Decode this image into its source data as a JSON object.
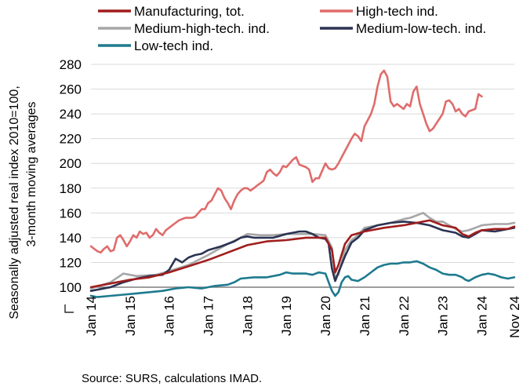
{
  "chart_data": {
    "type": "line",
    "ylabel_lines": [
      "Seasonally adjusted real  index 2010=100,",
      "3-month moving averages"
    ],
    "source": "Source: SURS, calculations IMAD.",
    "ylim": [
      90,
      280
    ],
    "yticks": [
      100,
      120,
      140,
      160,
      180,
      200,
      220,
      240,
      260,
      280
    ],
    "ytick_labels": [
      "100",
      "120",
      "140",
      "160",
      "180",
      "200",
      "220",
      "240",
      "260",
      "280"
    ],
    "y_break_marker": true,
    "baseline_value": 100,
    "grid": "horizontal",
    "legend_position": "top",
    "x_start": "Jan 14",
    "x_end": "Nov 24",
    "xtick_labels": [
      {
        "label": "Jan 14",
        "month_index": 0
      },
      {
        "label": "Jan 15",
        "month_index": 12
      },
      {
        "label": "Jan 16",
        "month_index": 24
      },
      {
        "label": "Jan 17",
        "month_index": 36
      },
      {
        "label": "Jan 18",
        "month_index": 48
      },
      {
        "label": "Jan 19",
        "month_index": 60
      },
      {
        "label": "Jan 20",
        "month_index": 72
      },
      {
        "label": "Jan 21",
        "month_index": 84
      },
      {
        "label": "Jan 22",
        "month_index": 96
      },
      {
        "label": "Jan 23",
        "month_index": 108
      },
      {
        "label": "Jan 24",
        "month_index": 120
      },
      {
        "label": "Nov 24",
        "month_index": 130
      }
    ],
    "series": [
      {
        "name": "Manufacturing, tot.",
        "color": "#a01d1d",
        "points": [
          [
            0,
            100
          ],
          [
            6,
            103
          ],
          [
            12,
            106
          ],
          [
            18,
            108
          ],
          [
            24,
            112
          ],
          [
            30,
            117
          ],
          [
            36,
            122
          ],
          [
            42,
            128
          ],
          [
            48,
            134
          ],
          [
            54,
            137
          ],
          [
            60,
            138
          ],
          [
            66,
            140
          ],
          [
            72,
            140
          ],
          [
            74,
            130
          ],
          [
            75,
            112
          ],
          [
            76,
            118
          ],
          [
            78,
            135
          ],
          [
            80,
            142
          ],
          [
            84,
            145
          ],
          [
            90,
            148
          ],
          [
            96,
            150
          ],
          [
            100,
            152
          ],
          [
            102,
            153
          ],
          [
            104,
            154
          ],
          [
            108,
            150
          ],
          [
            112,
            148
          ],
          [
            114,
            143
          ],
          [
            116,
            141
          ],
          [
            118,
            144
          ],
          [
            120,
            146
          ],
          [
            124,
            147
          ],
          [
            128,
            147
          ],
          [
            130,
            149
          ]
        ]
      },
      {
        "name": "High-tech ind.",
        "color": "#e06b6b",
        "points": [
          [
            0,
            133
          ],
          [
            1,
            131
          ],
          [
            2,
            129
          ],
          [
            3,
            128
          ],
          [
            4,
            131
          ],
          [
            5,
            133
          ],
          [
            6,
            129
          ],
          [
            7,
            130
          ],
          [
            8,
            140
          ],
          [
            9,
            142
          ],
          [
            10,
            138
          ],
          [
            11,
            133
          ],
          [
            12,
            137
          ],
          [
            13,
            142
          ],
          [
            14,
            140
          ],
          [
            15,
            145
          ],
          [
            16,
            143
          ],
          [
            17,
            144
          ],
          [
            18,
            140
          ],
          [
            19,
            142
          ],
          [
            20,
            147
          ],
          [
            21,
            144
          ],
          [
            22,
            142
          ],
          [
            23,
            146
          ],
          [
            24,
            148
          ],
          [
            25,
            150
          ],
          [
            26,
            152
          ],
          [
            27,
            154
          ],
          [
            28,
            155
          ],
          [
            29,
            156
          ],
          [
            30,
            156
          ],
          [
            31,
            156
          ],
          [
            32,
            157
          ],
          [
            33,
            160
          ],
          [
            34,
            163
          ],
          [
            35,
            163
          ],
          [
            36,
            168
          ],
          [
            37,
            170
          ],
          [
            38,
            175
          ],
          [
            39,
            180
          ],
          [
            40,
            178
          ],
          [
            41,
            172
          ],
          [
            42,
            168
          ],
          [
            43,
            163
          ],
          [
            44,
            170
          ],
          [
            45,
            175
          ],
          [
            46,
            178
          ],
          [
            47,
            180
          ],
          [
            48,
            180
          ],
          [
            49,
            178
          ],
          [
            50,
            180
          ],
          [
            51,
            182
          ],
          [
            52,
            184
          ],
          [
            53,
            186
          ],
          [
            54,
            193
          ],
          [
            55,
            195
          ],
          [
            56,
            192
          ],
          [
            57,
            190
          ],
          [
            58,
            193
          ],
          [
            59,
            198
          ],
          [
            60,
            197
          ],
          [
            61,
            200
          ],
          [
            62,
            203
          ],
          [
            63,
            205
          ],
          [
            64,
            199
          ],
          [
            65,
            198
          ],
          [
            66,
            197
          ],
          [
            67,
            195
          ],
          [
            68,
            185
          ],
          [
            69,
            188
          ],
          [
            70,
            188
          ],
          [
            71,
            194
          ],
          [
            72,
            200
          ],
          [
            73,
            196
          ],
          [
            74,
            195
          ],
          [
            75,
            196
          ],
          [
            76,
            200
          ],
          [
            77,
            205
          ],
          [
            78,
            210
          ],
          [
            79,
            215
          ],
          [
            80,
            220
          ],
          [
            81,
            224
          ],
          [
            82,
            222
          ],
          [
            83,
            218
          ],
          [
            84,
            230
          ],
          [
            85,
            235
          ],
          [
            86,
            240
          ],
          [
            87,
            248
          ],
          [
            88,
            262
          ],
          [
            89,
            272
          ],
          [
            90,
            275
          ],
          [
            91,
            270
          ],
          [
            92,
            250
          ],
          [
            93,
            246
          ],
          [
            94,
            248
          ],
          [
            95,
            246
          ],
          [
            96,
            244
          ],
          [
            97,
            248
          ],
          [
            98,
            246
          ],
          [
            99,
            258
          ],
          [
            100,
            262
          ],
          [
            101,
            248
          ],
          [
            102,
            240
          ],
          [
            103,
            232
          ],
          [
            104,
            226
          ],
          [
            105,
            228
          ],
          [
            106,
            232
          ],
          [
            107,
            236
          ],
          [
            108,
            240
          ],
          [
            109,
            250
          ],
          [
            110,
            251
          ],
          [
            111,
            248
          ],
          [
            112,
            242
          ],
          [
            113,
            244
          ],
          [
            114,
            240
          ],
          [
            115,
            238
          ],
          [
            116,
            242
          ],
          [
            117,
            243
          ],
          [
            118,
            244
          ],
          [
            119,
            256
          ],
          [
            120,
            254
          ]
        ]
      },
      {
        "name": "Medium-high-tech. ind.",
        "color": "#a6a6a6",
        "points": [
          [
            0,
            99
          ],
          [
            6,
            104
          ],
          [
            10,
            111
          ],
          [
            14,
            109
          ],
          [
            20,
            110
          ],
          [
            24,
            113
          ],
          [
            30,
            118
          ],
          [
            36,
            126
          ],
          [
            42,
            135
          ],
          [
            46,
            140
          ],
          [
            48,
            143
          ],
          [
            52,
            142
          ],
          [
            56,
            142
          ],
          [
            60,
            143
          ],
          [
            64,
            143
          ],
          [
            68,
            143
          ],
          [
            72,
            142
          ],
          [
            74,
            132
          ],
          [
            75,
            108
          ],
          [
            76,
            110
          ],
          [
            78,
            130
          ],
          [
            80,
            138
          ],
          [
            82,
            142
          ],
          [
            84,
            148
          ],
          [
            88,
            150
          ],
          [
            92,
            152
          ],
          [
            96,
            155
          ],
          [
            98,
            156
          ],
          [
            100,
            158
          ],
          [
            102,
            160
          ],
          [
            104,
            156
          ],
          [
            106,
            153
          ],
          [
            108,
            153
          ],
          [
            110,
            150
          ],
          [
            112,
            147
          ],
          [
            114,
            145
          ],
          [
            116,
            146
          ],
          [
            118,
            148
          ],
          [
            120,
            150
          ],
          [
            124,
            151
          ],
          [
            128,
            151
          ],
          [
            130,
            152
          ]
        ]
      },
      {
        "name": "Medium-low-tech. ind.",
        "color": "#2b3352",
        "points": [
          [
            0,
            97
          ],
          [
            6,
            100
          ],
          [
            10,
            104
          ],
          [
            14,
            107
          ],
          [
            18,
            109
          ],
          [
            22,
            110
          ],
          [
            24,
            114
          ],
          [
            26,
            123
          ],
          [
            28,
            120
          ],
          [
            30,
            124
          ],
          [
            32,
            126
          ],
          [
            34,
            127
          ],
          [
            36,
            130
          ],
          [
            40,
            133
          ],
          [
            44,
            137
          ],
          [
            46,
            140
          ],
          [
            48,
            141
          ],
          [
            50,
            140
          ],
          [
            52,
            140
          ],
          [
            56,
            140
          ],
          [
            60,
            143
          ],
          [
            62,
            144
          ],
          [
            64,
            145
          ],
          [
            66,
            145
          ],
          [
            68,
            143
          ],
          [
            70,
            140
          ],
          [
            72,
            139
          ],
          [
            73,
            135
          ],
          [
            74,
            115
          ],
          [
            75,
            105
          ],
          [
            76,
            112
          ],
          [
            78,
            125
          ],
          [
            80,
            136
          ],
          [
            82,
            140
          ],
          [
            84,
            146
          ],
          [
            88,
            150
          ],
          [
            92,
            152
          ],
          [
            96,
            153
          ],
          [
            100,
            152
          ],
          [
            104,
            150
          ],
          [
            108,
            146
          ],
          [
            112,
            144
          ],
          [
            114,
            141
          ],
          [
            116,
            140
          ],
          [
            118,
            143
          ],
          [
            120,
            146
          ],
          [
            124,
            145
          ],
          [
            128,
            147
          ],
          [
            130,
            148
          ]
        ]
      },
      {
        "name": "Low-tech ind.",
        "color": "#1d7a8e",
        "points": [
          [
            0,
            93
          ],
          [
            2,
            92
          ],
          [
            6,
            93
          ],
          [
            10,
            94
          ],
          [
            14,
            95
          ],
          [
            18,
            96
          ],
          [
            22,
            97
          ],
          [
            26,
            99
          ],
          [
            30,
            100
          ],
          [
            34,
            99
          ],
          [
            38,
            101
          ],
          [
            42,
            102
          ],
          [
            44,
            104
          ],
          [
            46,
            107
          ],
          [
            50,
            108
          ],
          [
            54,
            108
          ],
          [
            58,
            110
          ],
          [
            60,
            112
          ],
          [
            62,
            111
          ],
          [
            64,
            111
          ],
          [
            66,
            111
          ],
          [
            68,
            110
          ],
          [
            70,
            112
          ],
          [
            72,
            111
          ],
          [
            73,
            104
          ],
          [
            74,
            97
          ],
          [
            75,
            93
          ],
          [
            76,
            96
          ],
          [
            77,
            104
          ],
          [
            78,
            108
          ],
          [
            79,
            109
          ],
          [
            80,
            106
          ],
          [
            82,
            105
          ],
          [
            84,
            108
          ],
          [
            86,
            112
          ],
          [
            88,
            116
          ],
          [
            90,
            118
          ],
          [
            92,
            119
          ],
          [
            94,
            119
          ],
          [
            96,
            120
          ],
          [
            98,
            120
          ],
          [
            100,
            121
          ],
          [
            102,
            119
          ],
          [
            104,
            116
          ],
          [
            106,
            114
          ],
          [
            108,
            111
          ],
          [
            110,
            110
          ],
          [
            112,
            110
          ],
          [
            114,
            108
          ],
          [
            115,
            106
          ],
          [
            116,
            105
          ],
          [
            118,
            108
          ],
          [
            120,
            110
          ],
          [
            122,
            111
          ],
          [
            124,
            110
          ],
          [
            126,
            108
          ],
          [
            128,
            107
          ],
          [
            130,
            108
          ]
        ]
      }
    ]
  }
}
